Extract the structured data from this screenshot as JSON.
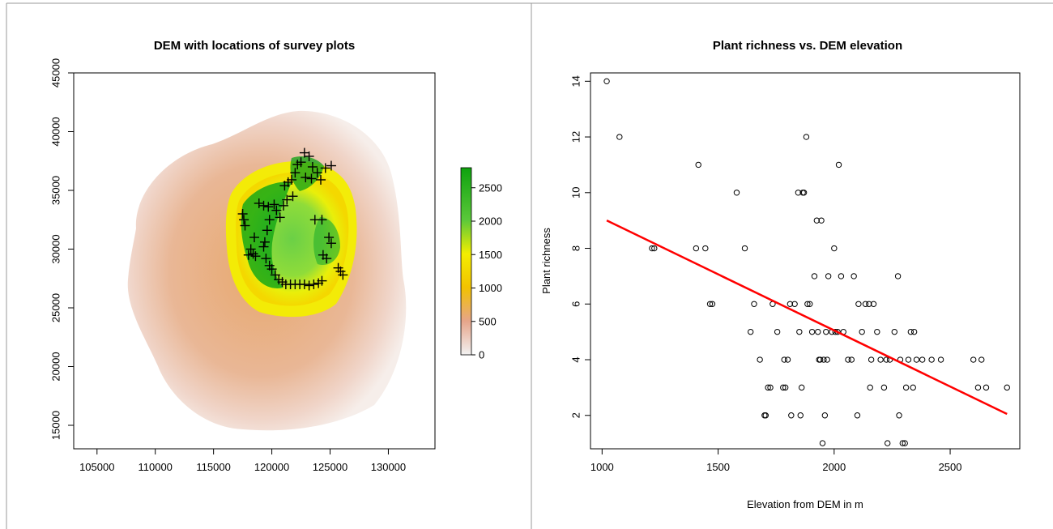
{
  "panels": {
    "left": {
      "title": "DEM with locations of survey plots",
      "x_ticks": [
        "105000",
        "110000",
        "115000",
        "120000",
        "125000",
        "130000"
      ],
      "y_ticks": [
        "15000",
        "20000",
        "25000",
        "30000",
        "35000",
        "40000",
        "45000"
      ],
      "legend_ticks": [
        "0",
        "500",
        "1000",
        "1500",
        "2000",
        "2500"
      ]
    },
    "right": {
      "title": "Plant richness vs. DEM elevation",
      "xlabel": "Elevation from DEM in m",
      "ylabel": "Plant richness",
      "x_ticks": [
        "1000",
        "1500",
        "2000",
        "2500"
      ],
      "y_ticks": [
        "2",
        "4",
        "6",
        "8",
        "10",
        "12",
        "14"
      ]
    }
  },
  "chart_data": [
    {
      "type": "heatmap",
      "title": "DEM with locations of survey plots",
      "xlim": [
        103000,
        134000
      ],
      "ylim": [
        13000,
        45000
      ],
      "color_scale": {
        "range": [
          0,
          2800
        ],
        "ticks": [
          0,
          500,
          1000,
          1500,
          2000,
          2500
        ],
        "colors": [
          "#f2f2f2",
          "#e6a58a",
          "#f2c200",
          "#f3ee00",
          "#5bc83a",
          "#0ea20e"
        ]
      },
      "plot_locations": [
        [
          117500,
          33000
        ],
        [
          117600,
          32500
        ],
        [
          117700,
          32000
        ],
        [
          118000,
          29500
        ],
        [
          118200,
          30000
        ],
        [
          118400,
          29600
        ],
        [
          118600,
          29400
        ],
        [
          118900,
          33900
        ],
        [
          119300,
          33700
        ],
        [
          119700,
          33600
        ],
        [
          119600,
          31600
        ],
        [
          119400,
          30600
        ],
        [
          119300,
          30200
        ],
        [
          119500,
          29200
        ],
        [
          119800,
          28600
        ],
        [
          120000,
          28300
        ],
        [
          120300,
          27800
        ],
        [
          120600,
          27400
        ],
        [
          120900,
          27200
        ],
        [
          121200,
          27000
        ],
        [
          121600,
          27000
        ],
        [
          122000,
          27000
        ],
        [
          122400,
          27000
        ],
        [
          122800,
          27000
        ],
        [
          123200,
          26900
        ],
        [
          123600,
          27000
        ],
        [
          124000,
          27100
        ],
        [
          124300,
          27300
        ],
        [
          120400,
          33300
        ],
        [
          120700,
          32700
        ],
        [
          121000,
          33700
        ],
        [
          121300,
          34200
        ],
        [
          121100,
          35400
        ],
        [
          121400,
          35700
        ],
        [
          121700,
          35900
        ],
        [
          122000,
          36500
        ],
        [
          122200,
          37200
        ],
        [
          122500,
          37400
        ],
        [
          122800,
          38200
        ],
        [
          123200,
          37900
        ],
        [
          123500,
          37000
        ],
        [
          123900,
          36500
        ],
        [
          124200,
          35900
        ],
        [
          124600,
          36900
        ],
        [
          125100,
          37100
        ],
        [
          122900,
          36100
        ],
        [
          123400,
          36000
        ],
        [
          123700,
          32500
        ],
        [
          124300,
          32500
        ],
        [
          124400,
          29500
        ],
        [
          124700,
          29200
        ],
        [
          124900,
          31000
        ],
        [
          125100,
          30500
        ],
        [
          125700,
          28400
        ],
        [
          125900,
          28100
        ],
        [
          126100,
          27800
        ],
        [
          120200,
          33800
        ],
        [
          119800,
          32500
        ],
        [
          118500,
          31000
        ],
        [
          121800,
          34500
        ]
      ]
    },
    {
      "type": "scatter",
      "title": "Plant richness vs. DEM elevation",
      "xlabel": "Elevation from DEM in m",
      "ylabel": "Plant richness",
      "xlim": [
        950,
        2800
      ],
      "ylim": [
        0.8,
        14.3
      ],
      "points": [
        [
          1020,
          14
        ],
        [
          1075,
          12
        ],
        [
          1215,
          8
        ],
        [
          1225,
          8
        ],
        [
          1405,
          8
        ],
        [
          1415,
          11
        ],
        [
          1445,
          8
        ],
        [
          1465,
          6
        ],
        [
          1475,
          6
        ],
        [
          1580,
          10
        ],
        [
          1615,
          8
        ],
        [
          1640,
          5
        ],
        [
          1655,
          6
        ],
        [
          1680,
          4
        ],
        [
          1700,
          2
        ],
        [
          1705,
          2
        ],
        [
          1715,
          3
        ],
        [
          1725,
          3
        ],
        [
          1735,
          6
        ],
        [
          1755,
          5
        ],
        [
          1780,
          3
        ],
        [
          1785,
          4
        ],
        [
          1790,
          3
        ],
        [
          1800,
          4
        ],
        [
          1810,
          6
        ],
        [
          1815,
          2
        ],
        [
          1830,
          6
        ],
        [
          1845,
          10
        ],
        [
          1850,
          5
        ],
        [
          1855,
          2
        ],
        [
          1860,
          3
        ],
        [
          1865,
          10
        ],
        [
          1870,
          10
        ],
        [
          1880,
          12
        ],
        [
          1885,
          6
        ],
        [
          1895,
          6
        ],
        [
          1905,
          5
        ],
        [
          1915,
          7
        ],
        [
          1925,
          9
        ],
        [
          1930,
          5
        ],
        [
          1935,
          4
        ],
        [
          1940,
          4
        ],
        [
          1945,
          9
        ],
        [
          1950,
          1
        ],
        [
          1955,
          4
        ],
        [
          1960,
          2
        ],
        [
          1965,
          5
        ],
        [
          1970,
          4
        ],
        [
          1975,
          7
        ],
        [
          1990,
          5
        ],
        [
          2000,
          8
        ],
        [
          2005,
          5
        ],
        [
          2015,
          5
        ],
        [
          2020,
          11
        ],
        [
          2030,
          7
        ],
        [
          2040,
          5
        ],
        [
          2060,
          4
        ],
        [
          2075,
          4
        ],
        [
          2085,
          7
        ],
        [
          2100,
          2
        ],
        [
          2105,
          6
        ],
        [
          2120,
          5
        ],
        [
          2135,
          6
        ],
        [
          2150,
          6
        ],
        [
          2155,
          3
        ],
        [
          2160,
          4
        ],
        [
          2170,
          6
        ],
        [
          2185,
          5
        ],
        [
          2200,
          4
        ],
        [
          2215,
          3
        ],
        [
          2225,
          4
        ],
        [
          2230,
          1
        ],
        [
          2240,
          4
        ],
        [
          2260,
          5
        ],
        [
          2275,
          7
        ],
        [
          2280,
          2
        ],
        [
          2285,
          4
        ],
        [
          2295,
          1
        ],
        [
          2305,
          1
        ],
        [
          2310,
          3
        ],
        [
          2320,
          4
        ],
        [
          2330,
          5
        ],
        [
          2340,
          3
        ],
        [
          2345,
          5
        ],
        [
          2355,
          4
        ],
        [
          2380,
          4
        ],
        [
          2420,
          4
        ],
        [
          2460,
          4
        ],
        [
          2600,
          4
        ],
        [
          2620,
          3
        ],
        [
          2635,
          4
        ],
        [
          2655,
          3
        ],
        [
          2745,
          3
        ]
      ],
      "trend_line": {
        "x": [
          1020,
          2745
        ],
        "y": [
          9.0,
          2.05
        ],
        "color": "#ff0000"
      }
    }
  ]
}
